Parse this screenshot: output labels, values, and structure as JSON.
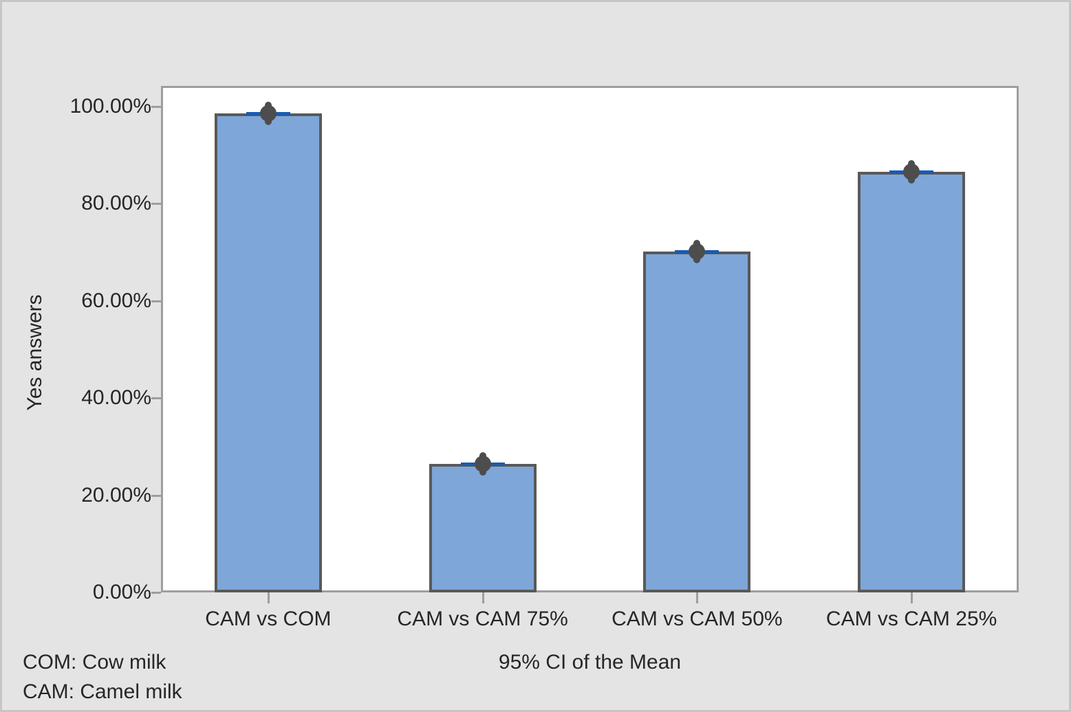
{
  "chart_data": {
    "type": "bar",
    "categories": [
      "CAM vs COM",
      "CAM vs CAM 75%",
      "CAM vs CAM 50%",
      "CAM vs CAM 25%"
    ],
    "values": [
      98.6,
      26.4,
      70.2,
      86.6
    ],
    "title": "",
    "xlabel": "95% CI of the Mean",
    "ylabel": "Yes answers",
    "ylim": [
      0,
      100
    ],
    "yticks": [
      0,
      20,
      40,
      60,
      80,
      100
    ],
    "ytick_labels": [
      "0.00%",
      "20.00%",
      "40.00%",
      "60.00%",
      "80.00%",
      "100.00%"
    ],
    "grid": false,
    "legend_position": "none",
    "error_bars": {
      "style": "95% CI of the Mean, circle marker on short blue interval at bar top",
      "half_width_pct": [
        0.8,
        1.0,
        0.9,
        0.7
      ]
    }
  },
  "footnotes": {
    "line1": "COM: Cow milk",
    "line2": "CAM: Camel milk"
  },
  "colors": {
    "background": "#e4e4e4",
    "plot_background": "#ffffff",
    "plot_border": "#9e9e9e",
    "bar_fill": "#7ea6d8",
    "bar_border": "#595959",
    "error_line": "#1b5bad",
    "marker": "#4d4d4d",
    "text": "#262626"
  }
}
